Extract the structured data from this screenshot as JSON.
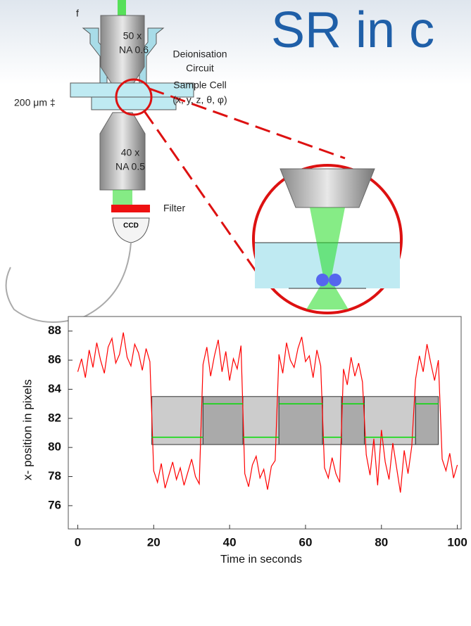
{
  "slide_title": "SR in c",
  "diagram": {
    "focal_label": "f",
    "objective_top": [
      "50 x",
      "NA 0.6"
    ],
    "circuit_label": [
      "Deionisation",
      "Circuit"
    ],
    "cell_label": [
      "Sample Cell",
      "(x, y, z, θ, φ)"
    ],
    "thickness_label": "200 μm ‡",
    "objective_bottom": [
      "40 x",
      "NA 0.5"
    ],
    "filter_label": "Filter",
    "camera_label": "CCD"
  },
  "chart_data": {
    "type": "line",
    "xlabel": "Time in seconds",
    "ylabel": "x- position in pixels",
    "xlim": [
      -2.5,
      101
    ],
    "ylim": [
      74.4,
      89
    ],
    "xticks": [
      0,
      20,
      40,
      60,
      80,
      100
    ],
    "yticks": [
      76,
      78,
      80,
      82,
      84,
      86,
      88
    ],
    "x": [
      0,
      1,
      2,
      3,
      4,
      5,
      6,
      7,
      8,
      9,
      10,
      11,
      12,
      13,
      14,
      15,
      16,
      17,
      18,
      19,
      20,
      21,
      22,
      23,
      24,
      25,
      26,
      27,
      28,
      29,
      30,
      31,
      32,
      33,
      34,
      35,
      36,
      37,
      38,
      39,
      40,
      41,
      42,
      43,
      44,
      45,
      46,
      47,
      48,
      49,
      50,
      51,
      52,
      53,
      54,
      55,
      56,
      57,
      58,
      59,
      60,
      61,
      62,
      63,
      64,
      65,
      66,
      67,
      68,
      69,
      70,
      71,
      72,
      73,
      74,
      75,
      76,
      77,
      78,
      79,
      80,
      81,
      82,
      83,
      84,
      85,
      86,
      87,
      88,
      89,
      90,
      91,
      92,
      93,
      94,
      95,
      96,
      97,
      98,
      99,
      100
    ],
    "series": [
      {
        "color": "#ff0000",
        "values": [
          85.2,
          86.1,
          84.8,
          86.7,
          85.5,
          87.2,
          86.0,
          85.1,
          86.9,
          87.5,
          85.8,
          86.4,
          87.9,
          86.2,
          85.6,
          87.1,
          86.5,
          85.3,
          86.8,
          85.9,
          78.4,
          77.6,
          78.9,
          77.2,
          78.1,
          79.0,
          77.8,
          78.6,
          77.4,
          78.3,
          79.2,
          78.0,
          77.5,
          85.7,
          86.9,
          84.9,
          86.3,
          87.4,
          85.2,
          86.6,
          84.6,
          86.1,
          85.4,
          87.0,
          78.2,
          77.3,
          78.8,
          79.4,
          77.9,
          78.5,
          77.1,
          78.7,
          79.1,
          86.4,
          85.1,
          87.2,
          86.0,
          85.5,
          86.8,
          87.6,
          85.9,
          86.3,
          84.8,
          86.7,
          85.6,
          78.6,
          77.9,
          79.3,
          78.2,
          77.6,
          85.4,
          84.3,
          86.2,
          84.9,
          85.8,
          84.5,
          79.5,
          78.1,
          80.6,
          77.4,
          81.2,
          79.0,
          77.8,
          80.3,
          78.6,
          76.9,
          79.8,
          78.2,
          80.1,
          84.7,
          86.3,
          85.2,
          87.1,
          85.8,
          84.6,
          86.0,
          79.2,
          78.4,
          79.6,
          77.9,
          78.8
        ]
      }
    ],
    "band": [
      80.2,
      83.5
    ],
    "level_color": "#00dd00",
    "segments": [
      {
        "start": 19.5,
        "end": 33,
        "level": 80.7,
        "fill": "#cccccc"
      },
      {
        "start": 33,
        "end": 43.5,
        "level": 83.0,
        "fill": "#aaaaaa"
      },
      {
        "start": 43.5,
        "end": 53,
        "level": 80.7,
        "fill": "#cccccc"
      },
      {
        "start": 53,
        "end": 64.5,
        "level": 83.0,
        "fill": "#aaaaaa"
      },
      {
        "start": 64.5,
        "end": 69.5,
        "level": 80.7,
        "fill": "#cccccc"
      },
      {
        "start": 69.5,
        "end": 75.5,
        "level": 83.0,
        "fill": "#aaaaaa"
      },
      {
        "start": 75.5,
        "end": 89,
        "level": 80.7,
        "fill": "#cccccc"
      },
      {
        "start": 89,
        "end": 95,
        "level": 83.0,
        "fill": "#aaaaaa"
      }
    ]
  }
}
